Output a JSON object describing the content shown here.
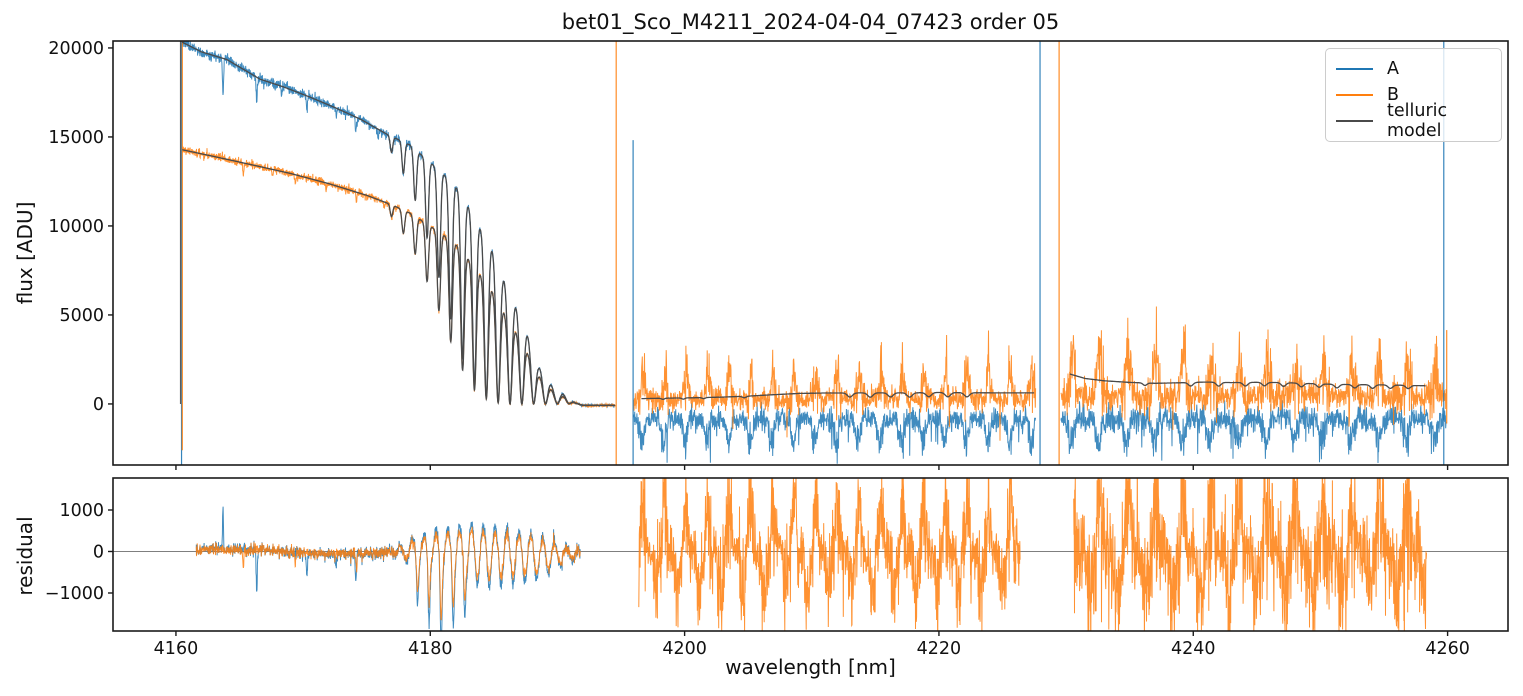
{
  "title": "bet01_Sco_M4211_2024-04-04_07423  order 05",
  "xlabel": "wavelength [nm]",
  "panels": {
    "top": {
      "ylabel": "flux [ADU]"
    },
    "bottom": {
      "ylabel": "residual"
    }
  },
  "legend": {
    "items": [
      {
        "label": "A",
        "color": "#1f77b4"
      },
      {
        "label": "B",
        "color": "#ff7f0e"
      },
      {
        "label": "telluric model",
        "color": "#4a4a4a"
      }
    ]
  },
  "colors": {
    "A": "#1f77b4",
    "B": "#ff7f0e",
    "model": "#4a4a4a",
    "zero_line": "#7f7f7f",
    "spine": "#1a1a1a",
    "text": "#111111"
  },
  "chart_data": {
    "type": "line",
    "seed": 7,
    "xlim": [
      4155.05,
      4264.75
    ],
    "xticks": [
      4160,
      4180,
      4200,
      4220,
      4240,
      4260
    ],
    "top": {
      "ylim": [
        -3430,
        20390
      ],
      "yticks": [
        0,
        5000,
        10000,
        15000,
        20000
      ],
      "seg1": {
        "x0": 4160.5,
        "x1": 4194.55,
        "envelope_A": [
          [
            4160.5,
            20320
          ],
          [
            4162,
            19780
          ],
          [
            4164,
            19350
          ],
          [
            4166.6,
            18250
          ],
          [
            4168.5,
            17800
          ],
          [
            4170.5,
            17250
          ],
          [
            4172.5,
            16650
          ],
          [
            4174.5,
            16000
          ],
          [
            4176.6,
            15150
          ],
          [
            4178.4,
            14550
          ],
          [
            4179.7,
            13750
          ],
          [
            4181,
            12950
          ],
          [
            4182.3,
            12000
          ],
          [
            4183.6,
            10350
          ],
          [
            4184.8,
            8850
          ],
          [
            4186,
            6750
          ],
          [
            4187.3,
            4750
          ],
          [
            4188.5,
            2250
          ],
          [
            4189.7,
            950
          ],
          [
            4190.7,
            500
          ],
          [
            4191.4,
            60
          ],
          [
            4192,
            -80
          ],
          [
            4194.55,
            -80
          ]
        ],
        "envelope_B": [
          [
            4160.5,
            14280
          ],
          [
            4163,
            13900
          ],
          [
            4166,
            13430
          ],
          [
            4169,
            12950
          ],
          [
            4172,
            12380
          ],
          [
            4175,
            11720
          ],
          [
            4177,
            11180
          ],
          [
            4178.4,
            10720
          ],
          [
            4179.7,
            10130
          ],
          [
            4181,
            9520
          ],
          [
            4182.3,
            8820
          ],
          [
            4183.6,
            7620
          ],
          [
            4184.8,
            6520
          ],
          [
            4186,
            5000
          ],
          [
            4187.3,
            3520
          ],
          [
            4188.5,
            1700
          ],
          [
            4189.7,
            700
          ],
          [
            4190.7,
            370
          ],
          [
            4191.4,
            40
          ],
          [
            4192,
            -80
          ],
          [
            4194.55,
            -80
          ]
        ],
        "band": {
          "start": 4176.95,
          "period": 0.932,
          "count": 16,
          "width0": 0.1,
          "width1": 0.2,
          "depths": [
            0.06,
            0.12,
            0.2,
            0.32,
            0.46,
            0.62,
            0.78,
            0.9,
            0.96,
            0.99,
            1,
            1,
            1,
            1,
            1,
            1
          ]
        },
        "dips_A": [
          [
            4163.7,
            -1900,
            0.05
          ],
          [
            4166.35,
            -1350,
            0.05
          ],
          [
            4168.3,
            -550,
            0.04
          ],
          [
            4170.3,
            -820,
            0.05
          ],
          [
            4172.6,
            -450,
            0.04
          ],
          [
            4174.15,
            -800,
            0.05
          ],
          [
            4175.9,
            -500,
            0.04
          ]
        ],
        "dips_B": [
          [
            4165.3,
            -620,
            0.05
          ],
          [
            4167.6,
            -300,
            0.04
          ],
          [
            4169.4,
            -420,
            0.05
          ],
          [
            4171.8,
            -350,
            0.04
          ],
          [
            4174.2,
            -520,
            0.05
          ],
          [
            4176.4,
            -350,
            0.04
          ]
        ],
        "noise_base": 40,
        "noise_scale": 0.0055
      },
      "seg2": {
        "x0": 4196.0,
        "x1": 4227.6,
        "phase": 4198.0,
        "period": 1.7,
        "B": {
          "base": 260,
          "sigma": 300,
          "amp0": 1300,
          "amp1": 2000,
          "neg_prob": 0.012,
          "neg_amp": 2000
        },
        "A": {
          "base": -850,
          "sigma": 320,
          "amp": 1500,
          "shift": 0.3,
          "neg_prob": 0.015,
          "neg_amp": 2200
        },
        "model": {
          "points": [
            [
              4196.6,
              300
            ],
            [
              4199,
              330
            ],
            [
              4201,
              350
            ],
            [
              4203,
              385
            ],
            [
              4205,
              440
            ],
            [
              4207,
              520
            ],
            [
              4209,
              590
            ],
            [
              4211,
              615
            ],
            [
              4214,
              620
            ],
            [
              4218,
              625
            ],
            [
              4220,
              645
            ],
            [
              4223,
              625
            ],
            [
              4226,
              620
            ],
            [
              4227.5,
              620
            ]
          ],
          "dips": [
            [
              4198.3,
              60,
              0.12
            ],
            [
              4199.9,
              70,
              0.12
            ],
            [
              4201.5,
              60,
              0.12
            ],
            [
              4204.7,
              80,
              0.15
            ],
            [
              4213.0,
              230,
              0.2
            ],
            [
              4214.6,
              240,
              0.2
            ],
            [
              4216.2,
              230,
              0.2
            ],
            [
              4217.7,
              240,
              0.2
            ],
            [
              4219.2,
              230,
              0.2
            ],
            [
              4220.7,
              240,
              0.2
            ],
            [
              4222.2,
              230,
              0.2
            ]
          ]
        }
      },
      "seg3": {
        "x0": 4229.6,
        "x1": 4259.9,
        "phase": 4232.1,
        "period": 2.2,
        "B": {
          "base": 420,
          "sigma": 420,
          "amp0": 2300,
          "amp1": 1600,
          "neg_prob": 0.012,
          "neg_amp": 2000
        },
        "A": {
          "base": -820,
          "sigma": 400,
          "amp": 1400,
          "shift": 0.3,
          "neg_prob": 0.015,
          "neg_amp": 2400
        },
        "model": {
          "points": [
            [
              4230.3,
              1680
            ],
            [
              4231.5,
              1430
            ],
            [
              4233,
              1300
            ],
            [
              4235,
              1210
            ],
            [
              4237,
              1160
            ],
            [
              4239,
              1190
            ],
            [
              4241,
              1230
            ],
            [
              4243,
              1200
            ],
            [
              4245,
              1215
            ],
            [
              4247,
              1200
            ],
            [
              4249,
              1150
            ],
            [
              4251,
              1105
            ],
            [
              4253,
              1085
            ],
            [
              4255,
              1070
            ],
            [
              4256.5,
              1050
            ],
            [
              4258.3,
              1020
            ]
          ],
          "dips": [
            [
              4236.2,
              140,
              0.15
            ],
            [
              4239.8,
              200,
              0.18
            ],
            [
              4242.0,
              210,
              0.18
            ],
            [
              4244.1,
              200,
              0.18
            ],
            [
              4245.6,
              190,
              0.18
            ],
            [
              4247.1,
              210,
              0.18
            ],
            [
              4248.5,
              200,
              0.18
            ],
            [
              4249.9,
              190,
              0.18
            ],
            [
              4251.3,
              200,
              0.18
            ],
            [
              4252.7,
              190,
              0.18
            ],
            [
              4254.1,
              200,
              0.18
            ],
            [
              4255.5,
              190,
              0.18
            ],
            [
              4256.9,
              180,
              0.18
            ]
          ]
        }
      },
      "spikes": [
        {
          "x": 4160.36,
          "series": "model",
          "v0": 0,
          "v1": 20390
        },
        {
          "x": 4160.44,
          "series": "A",
          "v0": -3430,
          "v1": 20390
        },
        {
          "x": 4160.5,
          "series": "B",
          "v0": -2600,
          "v1": 20390
        },
        {
          "x": 4194.62,
          "series": "B",
          "v0": -3430,
          "v1": 20390
        },
        {
          "x": 4195.95,
          "series": "A",
          "v0": -3430,
          "v1": 14820
        },
        {
          "x": 4227.95,
          "series": "A",
          "v0": -3430,
          "v1": 20390
        },
        {
          "x": 4229.45,
          "series": "B",
          "v0": -3430,
          "v1": 20390
        },
        {
          "x": 4259.7,
          "series": "A",
          "v0": -3430,
          "v1": 20390
        },
        {
          "x": 4259.93,
          "series": "B",
          "v0": -1100,
          "v1": 4150
        }
      ]
    },
    "bottom": {
      "ylim": [
        -1916,
        1771
      ],
      "yticks": [
        -1000,
        0,
        1000
      ],
      "seg1": {
        "x0": 4161.6,
        "x1": 4191.8,
        "sigma": 65,
        "osc_env": [
          [
            4176.5,
            0
          ],
          [
            4178,
            160
          ],
          [
            4180,
            380
          ],
          [
            4182,
            520
          ],
          [
            4184,
            560
          ],
          [
            4186,
            520
          ],
          [
            4188,
            450
          ],
          [
            4189.5,
            320
          ],
          [
            4190.5,
            150
          ],
          [
            4191.8,
            60
          ]
        ],
        "osc_period": 0.932,
        "osc_phase": 4177.42,
        "deep_dips": [
          [
            4179.0,
            -900,
            0.07
          ],
          [
            4179.9,
            -1350,
            0.07
          ],
          [
            4180.85,
            -1680,
            0.07
          ],
          [
            4181.8,
            -1150,
            0.07
          ],
          [
            4182.7,
            -800,
            0.07
          ]
        ],
        "spikes_A": [
          [
            4163.7,
            1000,
            0.035
          ],
          [
            4166.35,
            -1050,
            0.045
          ],
          [
            4170.3,
            -600,
            0.045
          ],
          [
            4172.6,
            -300,
            0.04
          ],
          [
            4174.15,
            -680,
            0.045
          ]
        ],
        "spikes_B": [
          [
            4165.3,
            -420,
            0.045
          ],
          [
            4169.4,
            -280,
            0.04
          ],
          [
            4174.2,
            -380,
            0.045
          ]
        ],
        "amp_A": 1.12,
        "amp_B": 0.85
      },
      "seg2": {
        "x0": 4196.4,
        "x1": 4226.4,
        "sigma": 300,
        "period": 1.7,
        "phase": 4198.0,
        "pos_amp": 1400,
        "neg_amp": 1400,
        "spike_prob": 0.02,
        "spike_amp": 900
      },
      "seg3": {
        "x0": 4230.6,
        "x1": 4258.35,
        "sigma": 430,
        "period": 2.2,
        "phase": 4232.1,
        "pos_amp": 1500,
        "neg_amp": 1500,
        "spike_prob": 0.03,
        "spike_amp": 1100
      }
    }
  }
}
